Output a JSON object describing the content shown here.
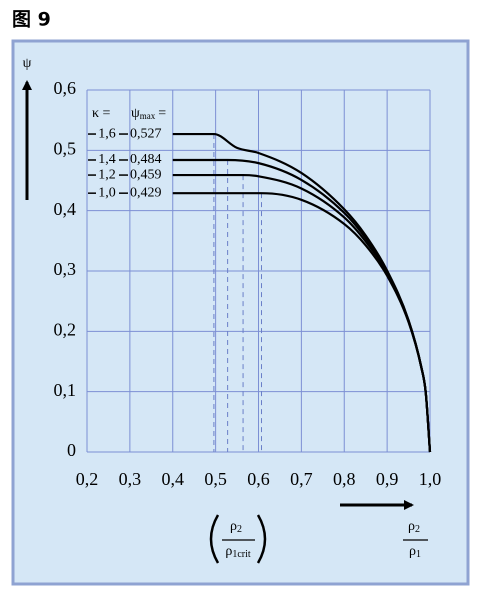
{
  "chart_data": {
    "type": "line",
    "title": "图 9",
    "y_label": "ψ",
    "kappa_header": "κ =",
    "psi_max_header": {
      "symbol": "ψ",
      "sub": "max",
      "eq": "="
    },
    "x_label": {
      "num": "ρ",
      "num_sub": "2",
      "den": "ρ",
      "den_sub": "1"
    },
    "crit_label": {
      "num": "ρ",
      "num_sub": "2",
      "den": "ρ",
      "den_sub": "1crit"
    },
    "xlim": [
      0.2,
      1.0
    ],
    "ylim": [
      0,
      0.6
    ],
    "xticks": [
      {
        "value": 0.2,
        "label": "0,2"
      },
      {
        "value": 0.3,
        "label": "0,3"
      },
      {
        "value": 0.4,
        "label": "0,4"
      },
      {
        "value": 0.5,
        "label": "0,5"
      },
      {
        "value": 0.6,
        "label": "0,6"
      },
      {
        "value": 0.7,
        "label": "0,7"
      },
      {
        "value": 0.8,
        "label": "0,8"
      },
      {
        "value": 0.9,
        "label": "0,9"
      },
      {
        "value": 1.0,
        "label": "1,0"
      }
    ],
    "yticks": [
      0,
      {
        "value": 0.1,
        "label": "0,1"
      },
      {
        "value": 0.2,
        "label": "0,2"
      },
      {
        "value": 0.3,
        "label": "0,3"
      },
      {
        "value": 0.4,
        "label": "0,4"
      },
      {
        "value": 0.5,
        "label": "0,5"
      },
      {
        "value": 0.6,
        "label": "0,6"
      }
    ],
    "grid": true,
    "color": "#000000",
    "series": [
      {
        "name": "1,6",
        "psi_max": {
          "value": 0.527,
          "label": "0,527"
        },
        "x": [
          0.4,
          0.496,
          0.55,
          0.6,
          0.7,
          0.8,
          0.85,
          0.9,
          0.95,
          0.98,
          0.99,
          1.0
        ],
        "values": [
          0.527,
          0.527,
          0.504,
          0.4956,
          0.4625,
          0.4023,
          0.3589,
          0.3007,
          0.2184,
          0.1401,
          0.099,
          0
        ]
      },
      {
        "name": "1,4",
        "psi_max": {
          "value": 0.484,
          "label": "0,484"
        },
        "x": [
          0.4,
          0.528,
          0.6,
          0.7,
          0.8,
          0.85,
          0.9,
          0.95,
          0.98,
          0.99,
          1.0
        ],
        "values": [
          0.484,
          0.484,
          0.4788,
          0.451,
          0.3965,
          0.3545,
          0.2988,
          0.2175,
          0.1399,
          0.099,
          0
        ]
      },
      {
        "name": "1,2",
        "psi_max": {
          "value": 0.459,
          "label": "0,459"
        },
        "x": [
          0.4,
          0.564,
          0.6,
          0.7,
          0.8,
          0.85,
          0.9,
          0.95,
          0.98,
          0.99,
          1.0
        ],
        "values": [
          0.459,
          0.459,
          0.457,
          0.4368,
          0.3888,
          0.349,
          0.2966,
          0.2166,
          0.1396,
          0.099,
          0
        ]
      },
      {
        "name": "1,0",
        "psi_max": {
          "value": 0.429,
          "label": "0,429"
        },
        "x": [
          0.4,
          0.607,
          0.7,
          0.8,
          0.85,
          0.9,
          0.95,
          0.98,
          0.99,
          1.0
        ],
        "values": [
          0.429,
          0.429,
          0.418,
          0.3779,
          0.3426,
          0.2921,
          0.2152,
          0.1393,
          0.099,
          0
        ]
      }
    ]
  }
}
